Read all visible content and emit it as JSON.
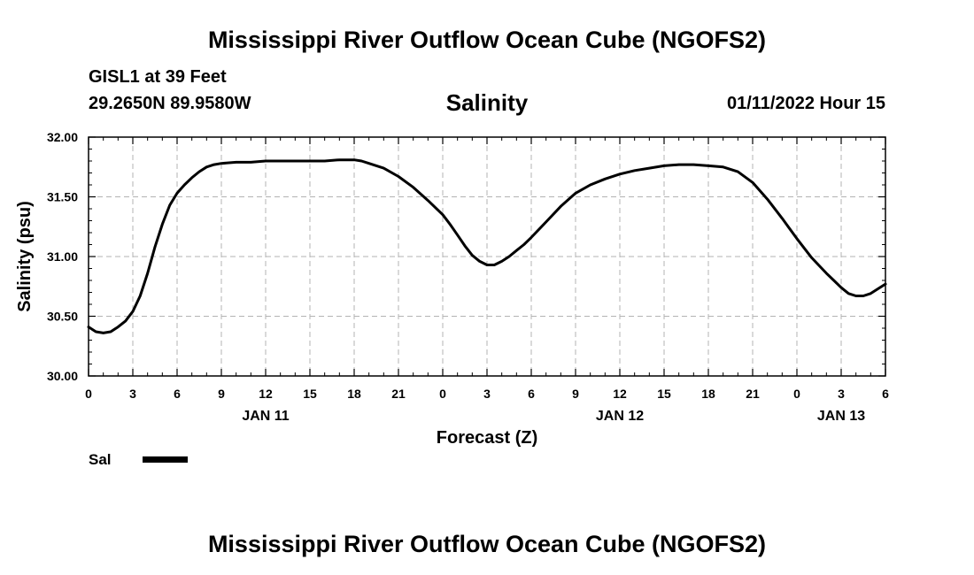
{
  "header": {
    "title": "Mississippi River Outflow Ocean Cube (NGOFS2)",
    "station": "GISL1 at 39 Feet",
    "coordinates": "29.2650N  89.9580W",
    "chart_title": "Salinity",
    "run_time": "01/11/2022 Hour 15"
  },
  "legend": {
    "label": "Sal",
    "color": "#000000"
  },
  "footer": {
    "title": "Mississippi River Outflow Ocean Cube (NGOFS2)"
  },
  "chart_data": {
    "type": "line",
    "title": "Salinity",
    "xlabel": "Forecast (Z)",
    "ylabel": "Salinity (psu)",
    "xlim": [
      0,
      54
    ],
    "ylim": [
      30.0,
      32.0
    ],
    "x_ticks": [
      0,
      3,
      6,
      9,
      12,
      15,
      18,
      21,
      24,
      27,
      30,
      33,
      36,
      39,
      42,
      45,
      48,
      51,
      54
    ],
    "x_tick_labels": [
      "0",
      "3",
      "6",
      "9",
      "12",
      "15",
      "18",
      "21",
      "0",
      "3",
      "6",
      "9",
      "12",
      "15",
      "18",
      "21",
      "0",
      "3",
      "6"
    ],
    "y_ticks": [
      30.0,
      30.5,
      31.0,
      31.5,
      32.0
    ],
    "y_tick_labels": [
      "30.00",
      "30.50",
      "31.00",
      "31.50",
      "32.00"
    ],
    "date_labels": [
      {
        "x": 12,
        "label": "JAN 11"
      },
      {
        "x": 36,
        "label": "JAN 12"
      },
      {
        "x": 51,
        "label": "JAN 13"
      }
    ],
    "grid": true,
    "legend_position": "bottom-left",
    "series": [
      {
        "name": "Sal",
        "color": "#000000",
        "x": [
          0,
          0.5,
          1,
          1.5,
          2,
          2.5,
          3,
          3.5,
          4,
          4.5,
          5,
          5.5,
          6,
          6.5,
          7,
          7.5,
          8,
          8.5,
          9,
          10,
          11,
          12,
          13,
          14,
          15,
          16,
          17,
          18,
          18.5,
          19,
          20,
          21,
          22,
          23,
          24,
          24.5,
          25,
          25.5,
          26,
          26.5,
          27,
          27.5,
          28,
          28.5,
          29,
          29.5,
          30,
          31,
          32,
          33,
          34,
          35,
          36,
          37,
          38,
          39,
          40,
          41,
          42,
          43,
          44,
          45,
          46,
          47,
          48,
          49,
          50,
          50.5,
          51,
          51.5,
          52,
          52.5,
          53,
          53.5,
          54
        ],
        "y": [
          30.41,
          30.37,
          30.36,
          30.37,
          30.41,
          30.46,
          30.54,
          30.67,
          30.86,
          31.08,
          31.27,
          31.43,
          31.53,
          31.6,
          31.66,
          31.71,
          31.75,
          31.77,
          31.78,
          31.79,
          31.79,
          31.8,
          31.8,
          31.8,
          31.8,
          31.8,
          31.81,
          31.81,
          31.8,
          31.78,
          31.74,
          31.67,
          31.58,
          31.47,
          31.35,
          31.27,
          31.18,
          31.09,
          31.01,
          30.96,
          30.93,
          30.93,
          30.96,
          31.0,
          31.05,
          31.1,
          31.16,
          31.29,
          31.42,
          31.53,
          31.6,
          31.65,
          31.69,
          31.72,
          31.74,
          31.76,
          31.77,
          31.77,
          31.76,
          31.75,
          31.71,
          31.62,
          31.48,
          31.32,
          31.15,
          30.99,
          30.86,
          30.8,
          30.74,
          30.69,
          30.67,
          30.67,
          30.69,
          30.73,
          30.77
        ]
      }
    ]
  }
}
